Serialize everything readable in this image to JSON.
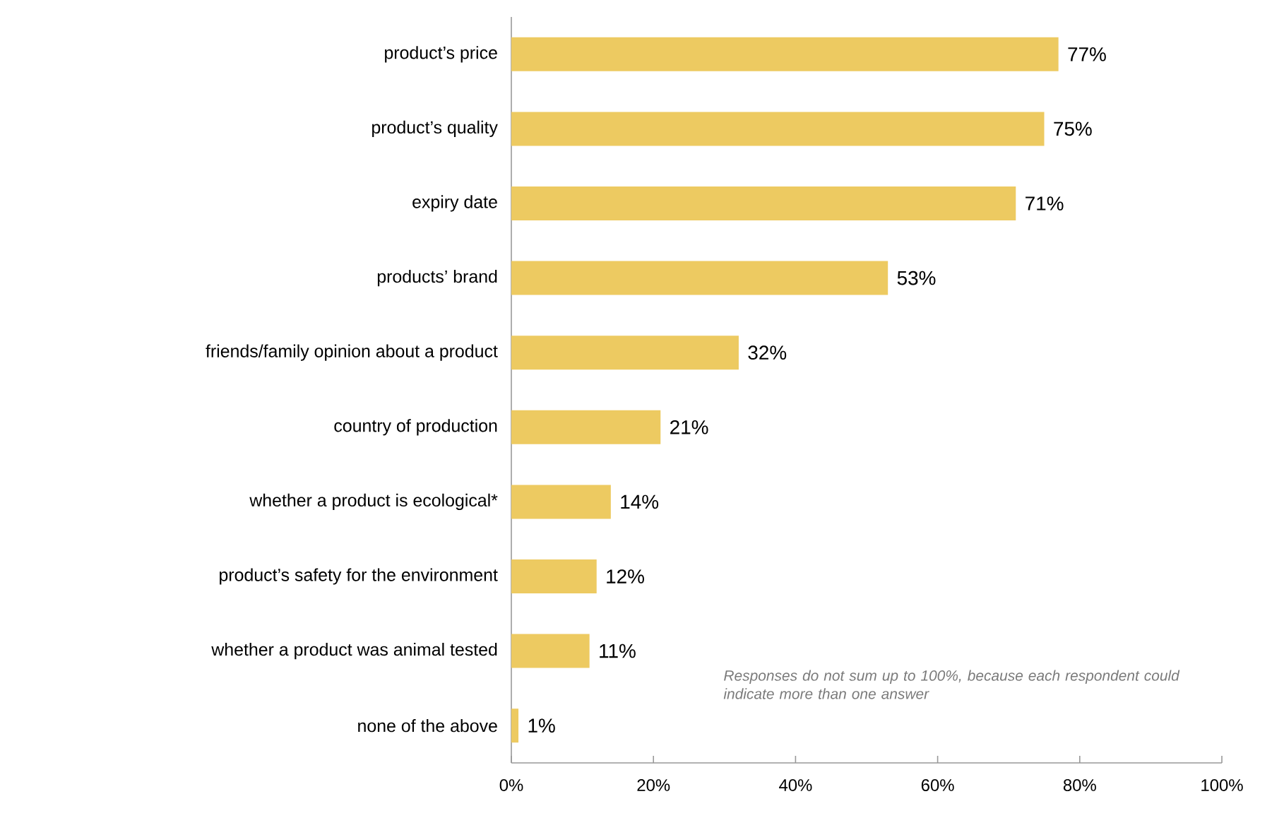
{
  "chart_data": {
    "type": "bar",
    "orientation": "horizontal",
    "color": "#edca61",
    "categories": [
      "product’s price",
      "product’s quality",
      "expiry date",
      "products’ brand",
      "friends/family opinion about a product",
      "country of production",
      "whether a product is ecological*",
      "product’s safety for the environment",
      "whether a product was animal tested",
      "none of the above"
    ],
    "values": [
      77,
      75,
      71,
      53,
      32,
      21,
      14,
      12,
      11,
      1
    ],
    "value_labels": [
      "77%",
      "75%",
      "71%",
      "53%",
      "32%",
      "21%",
      "14%",
      "12%",
      "11%",
      "1%"
    ],
    "xlim": [
      0,
      100
    ],
    "xticks": [
      {
        "value": 0,
        "label": "0%"
      },
      {
        "value": 20,
        "label": "20%"
      },
      {
        "value": 40,
        "label": "40%"
      },
      {
        "value": 60,
        "label": "60%"
      },
      {
        "value": 80,
        "label": "80%"
      },
      {
        "value": 100,
        "label": "100%"
      }
    ],
    "annotations": [
      "Responses do not sum up to 100%, because each respondent could indicate more than one answer"
    ]
  }
}
